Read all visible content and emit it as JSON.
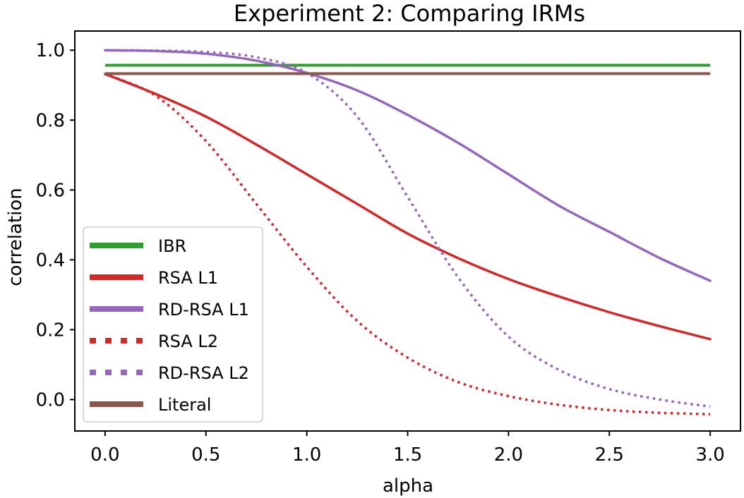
{
  "chart_data": {
    "type": "line",
    "title": "Experiment 2: Comparing IRMs",
    "xlabel": "alpha",
    "ylabel": "correlation",
    "xlim": [
      -0.15,
      3.15
    ],
    "ylim": [
      -0.09,
      1.055
    ],
    "xticks": [
      "0.0",
      "0.5",
      "1.0",
      "1.5",
      "2.0",
      "2.5",
      "3.0"
    ],
    "yticks": [
      "0.0",
      "0.2",
      "0.4",
      "0.6",
      "0.8",
      "1.0"
    ],
    "grid": false,
    "legend_position": "lower-left",
    "series": [
      {
        "name": "IBR",
        "color": "#2ca02c",
        "style": "solid",
        "x": [
          0.0,
          3.0
        ],
        "y": [
          0.957,
          0.957
        ]
      },
      {
        "name": "RSA L1",
        "color": "#d62728",
        "style": "solid",
        "x": [
          0.0,
          0.25,
          0.5,
          0.75,
          1.0,
          1.25,
          1.5,
          1.75,
          2.0,
          2.25,
          2.5,
          2.75,
          3.0
        ],
        "y": [
          0.932,
          0.875,
          0.81,
          0.73,
          0.645,
          0.56,
          0.475,
          0.405,
          0.345,
          0.295,
          0.25,
          0.21,
          0.173
        ]
      },
      {
        "name": "RD-RSA L1",
        "color": "#9467bd",
        "style": "solid",
        "x": [
          0.0,
          0.25,
          0.5,
          0.75,
          1.0,
          1.25,
          1.5,
          1.75,
          2.0,
          2.25,
          2.5,
          2.75,
          3.0
        ],
        "y": [
          1.0,
          0.998,
          0.99,
          0.97,
          0.935,
          0.885,
          0.815,
          0.735,
          0.645,
          0.555,
          0.48,
          0.405,
          0.34
        ]
      },
      {
        "name": "RSA L2",
        "color": "#d62728",
        "style": "dotted",
        "x": [
          0.0,
          0.25,
          0.5,
          0.75,
          1.0,
          1.25,
          1.5,
          1.75,
          2.0,
          2.25,
          2.5,
          2.75,
          3.0
        ],
        "y": [
          0.932,
          0.87,
          0.74,
          0.56,
          0.38,
          0.225,
          0.12,
          0.05,
          0.01,
          -0.015,
          -0.03,
          -0.038,
          -0.042
        ]
      },
      {
        "name": "RD-RSA L2",
        "color": "#9467bd",
        "style": "dotted",
        "x": [
          0.0,
          0.25,
          0.5,
          0.75,
          1.0,
          1.25,
          1.5,
          1.75,
          2.0,
          2.25,
          2.5,
          2.75,
          3.0
        ],
        "y": [
          1.0,
          0.999,
          0.995,
          0.98,
          0.935,
          0.81,
          0.58,
          0.35,
          0.18,
          0.085,
          0.03,
          0.0,
          -0.02
        ]
      },
      {
        "name": "Literal",
        "color": "#8c564b",
        "style": "solid",
        "x": [
          0.0,
          3.0
        ],
        "y": [
          0.933,
          0.933
        ]
      }
    ]
  }
}
